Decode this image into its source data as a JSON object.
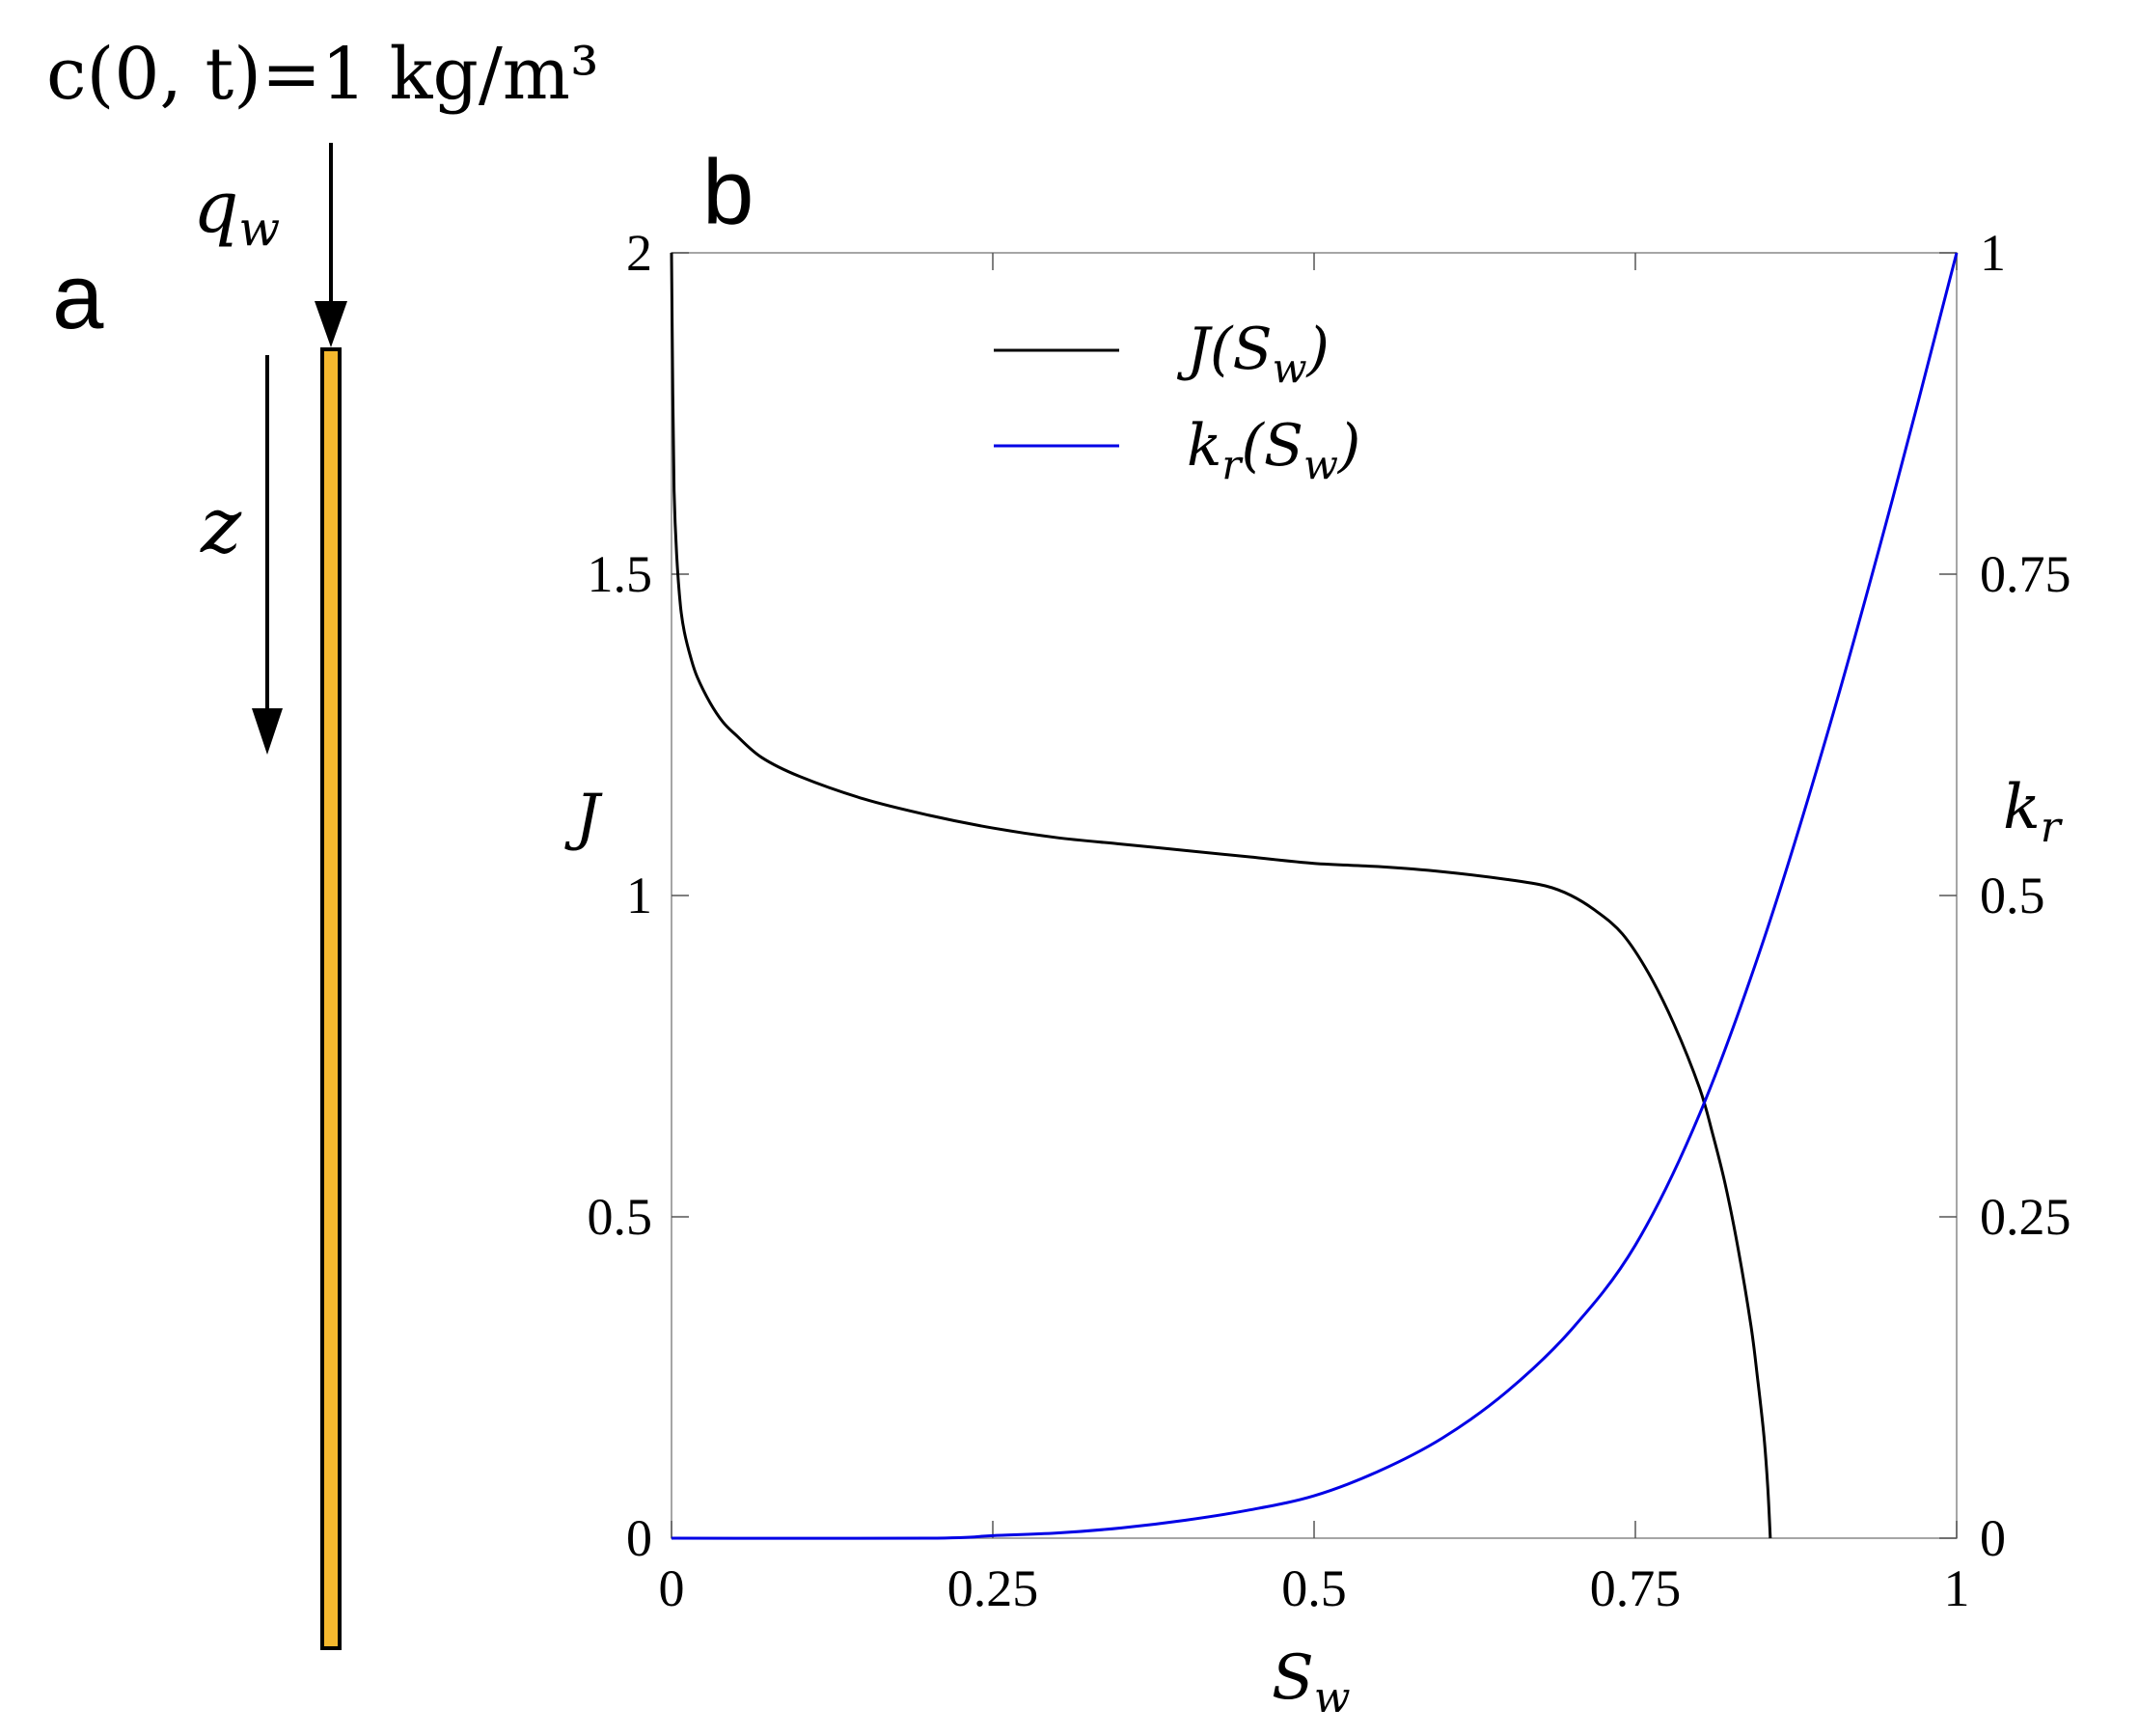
{
  "panel_a": {
    "letter": "a",
    "boundary_condition": "c(0, t)=1 kg/m³",
    "flux_label": "q",
    "flux_subscript": "w",
    "depth_label": "z",
    "colors": {
      "column_fill": "#f5b82e",
      "column_stroke": "#000000"
    }
  },
  "panel_b": {
    "letter": "b"
  },
  "chart_data": {
    "type": "line",
    "xlabel": "S",
    "xlabel_sub": "w",
    "ylabel_left": "J",
    "ylabel_right": "k",
    "ylabel_right_sub": "r",
    "xlim": [
      0,
      1
    ],
    "ylim_left": [
      0,
      2
    ],
    "ylim_right": [
      0,
      1
    ],
    "x_ticks": [
      "0",
      "0.25",
      "0.5",
      "0.75",
      "1"
    ],
    "y_left_ticks": [
      "0",
      "0.5",
      "1",
      "1.5",
      "2"
    ],
    "y_right_ticks": [
      "0",
      "0.25",
      "0.5",
      "0.75",
      "1"
    ],
    "grid": false,
    "legend_position": "top-center",
    "series": [
      {
        "name": "J(S_w)",
        "legend_main": "J(S",
        "legend_sub": "w",
        "legend_close": ")",
        "axis": "left",
        "color": "#000000",
        "points": [
          [
            0.0,
            2.0
          ],
          [
            0.001,
            1.78
          ],
          [
            0.002,
            1.63
          ],
          [
            0.004,
            1.53
          ],
          [
            0.007,
            1.45
          ],
          [
            0.01,
            1.41
          ],
          [
            0.015,
            1.37
          ],
          [
            0.02,
            1.34
          ],
          [
            0.03,
            1.3
          ],
          [
            0.04,
            1.27
          ],
          [
            0.05,
            1.25
          ],
          [
            0.07,
            1.215
          ],
          [
            0.1,
            1.185
          ],
          [
            0.15,
            1.15
          ],
          [
            0.2,
            1.125
          ],
          [
            0.25,
            1.105
          ],
          [
            0.3,
            1.09
          ],
          [
            0.35,
            1.08
          ],
          [
            0.4,
            1.07
          ],
          [
            0.45,
            1.06
          ],
          [
            0.5,
            1.05
          ],
          [
            0.55,
            1.045
          ],
          [
            0.6,
            1.037
          ],
          [
            0.65,
            1.025
          ],
          [
            0.68,
            1.015
          ],
          [
            0.7,
            1.0
          ],
          [
            0.72,
            0.975
          ],
          [
            0.74,
            0.94
          ],
          [
            0.76,
            0.88
          ],
          [
            0.78,
            0.8
          ],
          [
            0.8,
            0.7
          ],
          [
            0.81,
            0.63
          ],
          [
            0.82,
            0.55
          ],
          [
            0.83,
            0.45
          ],
          [
            0.84,
            0.33
          ],
          [
            0.845,
            0.25
          ],
          [
            0.85,
            0.16
          ],
          [
            0.853,
            0.08
          ],
          [
            0.855,
            0.0
          ]
        ]
      },
      {
        "name": "k_r(S_w)",
        "legend_main": "k",
        "legend_sub": "r",
        "legend_rest": "(S",
        "legend_sub2": "w",
        "legend_close": ")",
        "axis": "right",
        "color": "#0000e6",
        "points": [
          [
            0.0,
            0.0
          ],
          [
            0.2,
            0.0
          ],
          [
            0.25,
            0.002
          ],
          [
            0.3,
            0.004
          ],
          [
            0.35,
            0.008
          ],
          [
            0.4,
            0.014
          ],
          [
            0.45,
            0.022
          ],
          [
            0.5,
            0.033
          ],
          [
            0.55,
            0.052
          ],
          [
            0.6,
            0.078
          ],
          [
            0.65,
            0.114
          ],
          [
            0.7,
            0.162
          ],
          [
            0.75,
            0.228
          ],
          [
            0.8,
            0.33
          ],
          [
            0.85,
            0.466
          ],
          [
            0.9,
            0.628
          ],
          [
            0.95,
            0.808
          ],
          [
            1.0,
            1.0
          ]
        ]
      }
    ]
  }
}
